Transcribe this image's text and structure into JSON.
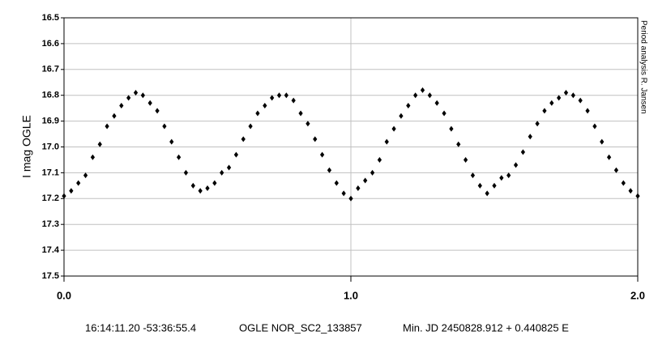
{
  "chart_data": {
    "type": "scatter",
    "ylabel": "I mag OGLE",
    "side_note": "Period analysis  R. Jansen",
    "captions": [
      "16:14:11.20 -53:36:55.4",
      "OGLE NOR_SC2_133857",
      "Min. JD 2450828.912 + 0.440825 E"
    ],
    "color": "#000000",
    "xlim": [
      0,
      2
    ],
    "xticks": [
      {
        "value": 0,
        "label": "0.0"
      },
      {
        "value": 1,
        "label": "1.0"
      },
      {
        "value": 2,
        "label": "2.0"
      }
    ],
    "ylim": [
      17.5,
      16.5
    ],
    "yticks": [
      16.5,
      16.6,
      16.7,
      16.8,
      16.9,
      {
        "value": 17,
        "label": "17.0"
      },
      17.1,
      17.2,
      17.3,
      17.4,
      17.5
    ],
    "grid": true,
    "x": [
      0,
      0.025,
      0.05,
      0.075,
      0.1,
      0.125,
      0.15,
      0.175,
      0.2,
      0.225,
      0.25,
      0.275,
      0.3,
      0.325,
      0.35,
      0.375,
      0.4,
      0.425,
      0.45,
      0.475,
      0.5,
      0.525,
      0.55,
      0.575,
      0.6,
      0.625,
      0.65,
      0.675,
      0.7,
      0.725,
      0.75,
      0.775,
      0.8,
      0.825,
      0.85,
      0.875,
      0.9,
      0.925,
      0.95,
      0.975,
      1,
      1.025,
      1.05,
      1.075,
      1.1,
      1.125,
      1.15,
      1.175,
      1.2,
      1.225,
      1.25,
      1.275,
      1.3,
      1.325,
      1.35,
      1.375,
      1.4,
      1.425,
      1.45,
      1.475,
      1.5,
      1.525,
      1.55,
      1.575,
      1.6,
      1.625,
      1.65,
      1.675,
      1.7,
      1.725,
      1.75,
      1.775,
      1.8,
      1.825,
      1.85,
      1.875,
      1.9,
      1.925,
      1.95,
      1.975,
      2
    ],
    "values": [
      17.19,
      17.17,
      17.14,
      17.11,
      17.04,
      16.99,
      16.92,
      16.88,
      16.84,
      16.81,
      16.79,
      16.8,
      16.83,
      16.86,
      16.92,
      16.98,
      17.04,
      17.1,
      17.15,
      17.17,
      17.16,
      17.14,
      17.1,
      17.08,
      17.03,
      16.97,
      16.92,
      16.87,
      16.84,
      16.81,
      16.8,
      16.8,
      16.82,
      16.87,
      16.91,
      16.97,
      17.03,
      17.09,
      17.14,
      17.18,
      17.2,
      17.16,
      17.13,
      17.1,
      17.05,
      16.98,
      16.93,
      16.88,
      16.84,
      16.8,
      16.78,
      16.8,
      16.83,
      16.87,
      16.93,
      16.99,
      17.05,
      17.11,
      17.15,
      17.18,
      17.15,
      17.12,
      17.11,
      17.07,
      17.02,
      16.96,
      16.91,
      16.86,
      16.83,
      16.81,
      16.79,
      16.8,
      16.82,
      16.86,
      16.92,
      16.98,
      17.04,
      17.09,
      17.14,
      17.17,
      17.19
    ]
  }
}
